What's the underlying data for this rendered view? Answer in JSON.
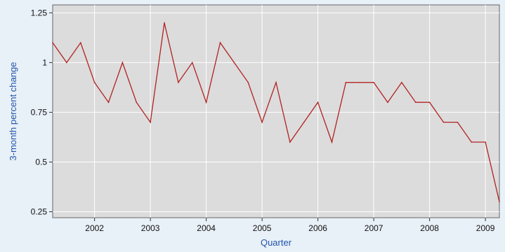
{
  "chart_data": {
    "type": "line",
    "title": "",
    "xlabel": "Quarter",
    "ylabel": "3-month percent change",
    "xlim": [
      2001.25,
      2009.25
    ],
    "ylim": [
      0.22,
      1.29
    ],
    "grid": true,
    "legend": "none",
    "colors": {
      "plot_background": "#dcdcdc",
      "page_background": "#e8f0f8",
      "gridline": "#ffffff",
      "series_line": "#b22222",
      "axis_title": "#2255aa"
    },
    "x_ticks": [
      2002,
      2003,
      2004,
      2005,
      2006,
      2007,
      2008,
      2009
    ],
    "x_tick_labels": [
      "2002",
      "2003",
      "2004",
      "2005",
      "2006",
      "2007",
      "2008",
      "2009"
    ],
    "y_ticks": [
      0.25,
      0.5,
      0.75,
      1,
      1.25
    ],
    "y_tick_labels": [
      "0.25",
      "0.5",
      "0.75",
      "1",
      "1.25"
    ],
    "series": [
      {
        "x": [
          2001.25,
          2001.5,
          2001.75,
          2002.0,
          2002.25,
          2002.5,
          2002.75,
          2003.0,
          2003.25,
          2003.5,
          2003.75,
          2004.0,
          2004.25,
          2004.5,
          2004.75,
          2005.0,
          2005.25,
          2005.5,
          2005.75,
          2006.0,
          2006.25,
          2006.5,
          2006.75,
          2007.0,
          2007.25,
          2007.5,
          2007.75,
          2008.0,
          2008.25,
          2008.5,
          2008.75,
          2009.0,
          2009.25
        ],
        "values": [
          1.1,
          1.0,
          1.1,
          0.9,
          0.8,
          1.0,
          0.8,
          0.7,
          1.2,
          0.9,
          1.0,
          0.8,
          1.1,
          1.0,
          0.9,
          0.7,
          0.9,
          0.6,
          0.7,
          0.8,
          0.6,
          0.9,
          0.9,
          0.9,
          0.8,
          0.9,
          0.8,
          0.8,
          0.7,
          0.7,
          0.6,
          0.6,
          0.3
        ]
      }
    ]
  }
}
